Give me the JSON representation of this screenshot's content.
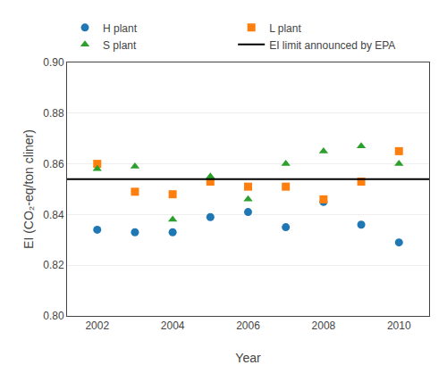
{
  "chart_data": {
    "type": "scatter",
    "xlabel": "Year",
    "ylabel": "EI (CO₂-eq/ton cliner)",
    "x": [
      2002,
      2003,
      2004,
      2005,
      2006,
      2007,
      2008,
      2009,
      2010
    ],
    "series": [
      {
        "name": "H plant",
        "marker": "circle",
        "values": [
          0.834,
          0.833,
          0.833,
          0.839,
          0.841,
          0.835,
          0.845,
          0.836,
          0.829
        ]
      },
      {
        "name": "L plant",
        "marker": "square",
        "values": [
          0.86,
          0.849,
          0.848,
          0.853,
          0.851,
          0.851,
          0.846,
          0.853,
          0.865
        ]
      },
      {
        "name": "S plant",
        "marker": "triangle",
        "values": [
          0.858,
          0.859,
          0.838,
          0.855,
          0.846,
          0.86,
          0.865,
          0.867,
          0.86
        ]
      }
    ],
    "reference_line": {
      "name": "EI limit announced by EPA",
      "value": 0.854,
      "color": "black",
      "line_style": "solid"
    },
    "xlim": [
      2001.2,
      2010.8
    ],
    "xticks": [
      2002,
      2004,
      2006,
      2008,
      2010
    ],
    "ylim": [
      0.8,
      0.9
    ],
    "yticks": [
      {
        "value": 0.8,
        "label": "0.80"
      },
      0.82,
      0.84,
      0.86,
      0.88,
      {
        "value": 0.9,
        "label": "0.90"
      }
    ],
    "grid": "y",
    "legend": "top"
  }
}
